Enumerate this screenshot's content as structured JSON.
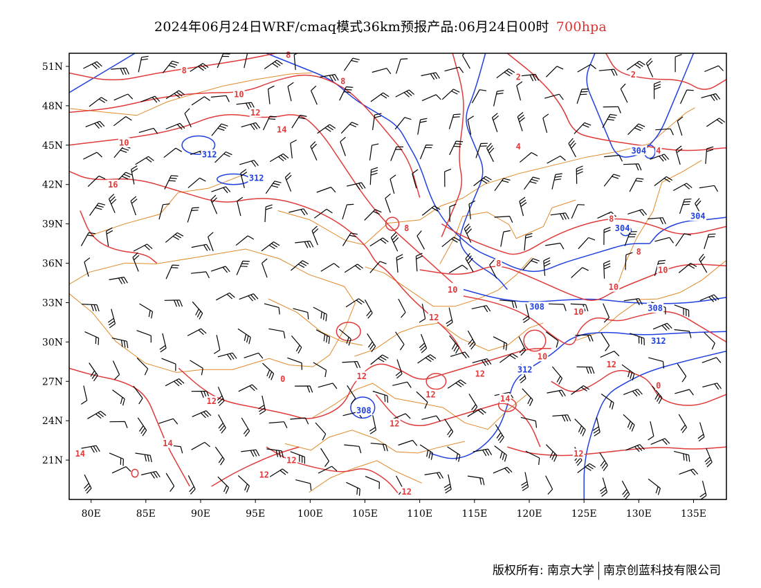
{
  "title": {
    "main": "2024年06月24日WRF/cmaq模式36km预报产品:06月24日00时",
    "level": "700hpa",
    "level_color": "#e03030"
  },
  "map": {
    "lon_range": [
      78,
      138
    ],
    "lat_range": [
      18,
      52
    ],
    "x_ticks": [
      {
        "lon": 80,
        "label": "80E"
      },
      {
        "lon": 85,
        "label": "85E"
      },
      {
        "lon": 90,
        "label": "90E"
      },
      {
        "lon": 95,
        "label": "95E"
      },
      {
        "lon": 100,
        "label": "100E"
      },
      {
        "lon": 105,
        "label": "105E"
      },
      {
        "lon": 110,
        "label": "110E"
      },
      {
        "lon": 115,
        "label": "115E"
      },
      {
        "lon": 120,
        "label": "120E"
      },
      {
        "lon": 125,
        "label": "125E"
      },
      {
        "lon": 130,
        "label": "130E"
      },
      {
        "lon": 135,
        "label": "135E"
      }
    ],
    "y_ticks": [
      {
        "lat": 51,
        "label": "51N"
      },
      {
        "lat": 48,
        "label": "48N"
      },
      {
        "lat": 45,
        "label": "45N"
      },
      {
        "lat": 42,
        "label": "42N"
      },
      {
        "lat": 39,
        "label": "39N"
      },
      {
        "lat": 36,
        "label": "36N"
      },
      {
        "lat": 33,
        "label": "33N"
      },
      {
        "lat": 30,
        "label": "30N"
      },
      {
        "lat": 27,
        "label": "27N"
      },
      {
        "lat": 24,
        "label": "24N"
      },
      {
        "lat": 21,
        "label": "21N"
      }
    ],
    "colors": {
      "temperature": "#e03a3a",
      "height": "#2040e0",
      "boundary": "#e08a2a",
      "barb": "#000000"
    },
    "temperature_labels": [
      {
        "text": "8",
        "lon": 88.5,
        "lat": 50.7
      },
      {
        "text": "8",
        "lon": 98.0,
        "lat": 51.9
      },
      {
        "text": "8",
        "lon": 103.0,
        "lat": 49.9
      },
      {
        "text": "2",
        "lon": 119.0,
        "lat": 50.2
      },
      {
        "text": "2",
        "lon": 129.5,
        "lat": 50.4
      },
      {
        "text": "10",
        "lon": 93.5,
        "lat": 48.9
      },
      {
        "text": "12",
        "lon": 95.0,
        "lat": 47.5
      },
      {
        "text": "14",
        "lon": 97.4,
        "lat": 46.2
      },
      {
        "text": "10",
        "lon": 83.0,
        "lat": 45.2
      },
      {
        "text": "16",
        "lon": 82.0,
        "lat": 42.0
      },
      {
        "text": "4",
        "lon": 119.0,
        "lat": 44.9
      },
      {
        "text": "4",
        "lon": 131.8,
        "lat": 44.6
      },
      {
        "text": "8",
        "lon": 108.8,
        "lat": 38.7
      },
      {
        "text": "8",
        "lon": 127.5,
        "lat": 39.4
      },
      {
        "text": "8",
        "lon": 130.0,
        "lat": 36.9
      },
      {
        "text": "8",
        "lon": 117.2,
        "lat": 36.0
      },
      {
        "text": "10",
        "lon": 113.0,
        "lat": 34.0
      },
      {
        "text": "10",
        "lon": 127.7,
        "lat": 34.2
      },
      {
        "text": "10",
        "lon": 132.2,
        "lat": 35.5
      },
      {
        "text": "10",
        "lon": 124.5,
        "lat": 32.3
      },
      {
        "text": "12",
        "lon": 111.3,
        "lat": 31.9
      },
      {
        "text": "10",
        "lon": 121.2,
        "lat": 28.9
      },
      {
        "text": "12",
        "lon": 127.5,
        "lat": 28.3
      },
      {
        "text": "12",
        "lon": 104.7,
        "lat": 27.4
      },
      {
        "text": "12",
        "lon": 115.5,
        "lat": 27.6
      },
      {
        "text": "12",
        "lon": 111.0,
        "lat": 26.0
      },
      {
        "text": "0",
        "lon": 97.5,
        "lat": 27.2
      },
      {
        "text": "0",
        "lon": 131.8,
        "lat": 26.7
      },
      {
        "text": "12",
        "lon": 91.0,
        "lat": 25.5
      },
      {
        "text": "14",
        "lon": 117.8,
        "lat": 25.7
      },
      {
        "text": "12",
        "lon": 107.7,
        "lat": 23.8
      },
      {
        "text": "14",
        "lon": 87.0,
        "lat": 22.3
      },
      {
        "text": "14",
        "lon": 79.0,
        "lat": 21.5
      },
      {
        "text": "12",
        "lon": 98.3,
        "lat": 21.0
      },
      {
        "text": "12",
        "lon": 95.8,
        "lat": 19.9
      },
      {
        "text": "12",
        "lon": 124.5,
        "lat": 21.5
      },
      {
        "text": "12",
        "lon": 108.8,
        "lat": 18.6
      }
    ],
    "height_labels": [
      {
        "text": "312",
        "lon": 90.8,
        "lat": 44.3
      },
      {
        "text": "312",
        "lon": 95.1,
        "lat": 42.5
      },
      {
        "text": "304",
        "lon": 130.0,
        "lat": 44.6
      },
      {
        "text": "304",
        "lon": 135.4,
        "lat": 39.6
      },
      {
        "text": "304",
        "lon": 128.5,
        "lat": 38.7
      },
      {
        "text": "308",
        "lon": 120.7,
        "lat": 32.7
      },
      {
        "text": "308",
        "lon": 131.5,
        "lat": 32.6
      },
      {
        "text": "312",
        "lon": 131.8,
        "lat": 30.1
      },
      {
        "text": "312",
        "lon": 119.6,
        "lat": 27.9
      },
      {
        "text": "308",
        "lon": 104.9,
        "lat": 24.8
      }
    ]
  },
  "footer": {
    "left": "版权所有: 南京大学",
    "right": "南京创蓝科技有限公司"
  }
}
